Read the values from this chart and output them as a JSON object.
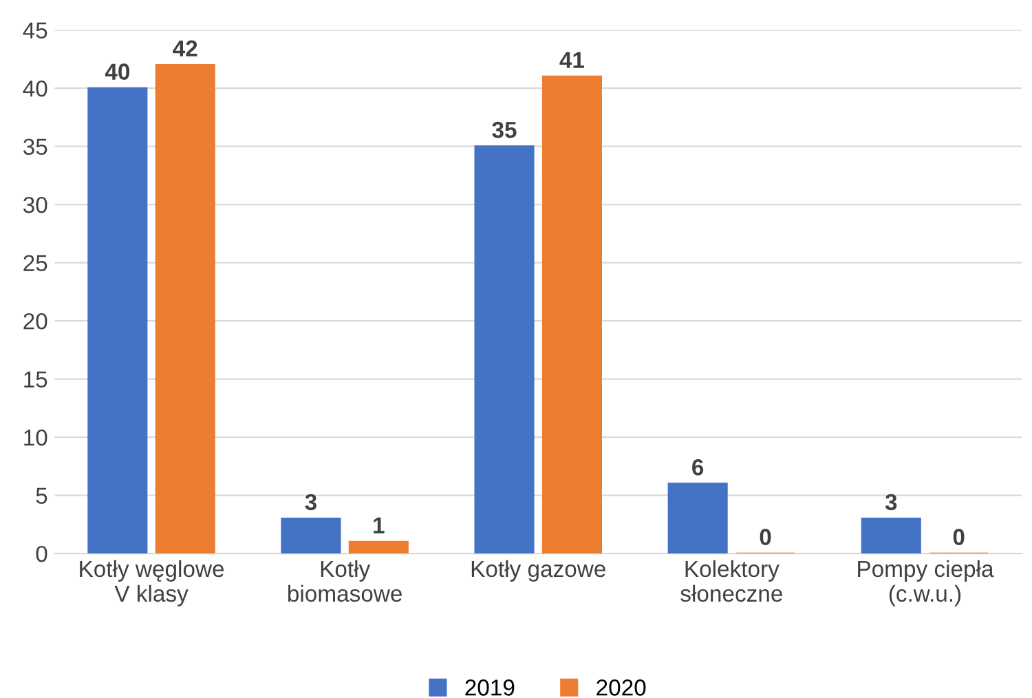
{
  "chart_data": {
    "type": "bar",
    "categories": [
      "Kotły węglowe\nV klasy",
      "Kotły\nbiomasowe",
      "Kotły gazowe",
      "Kolektory\nsłoneczne",
      "Pompy ciepła\n(c.w.u.)"
    ],
    "series": [
      {
        "name": "2019",
        "color": "#4472c4",
        "values": [
          40,
          3,
          35,
          6,
          3
        ]
      },
      {
        "name": "2020",
        "color": "#ed7d31",
        "values": [
          42,
          1,
          41,
          0,
          0
        ]
      }
    ],
    "ylim": [
      0,
      45
    ],
    "yticks": [
      0,
      5,
      10,
      15,
      20,
      25,
      30,
      35,
      40,
      45
    ],
    "grid": "y",
    "legend": "bottom",
    "data_labels": true
  }
}
